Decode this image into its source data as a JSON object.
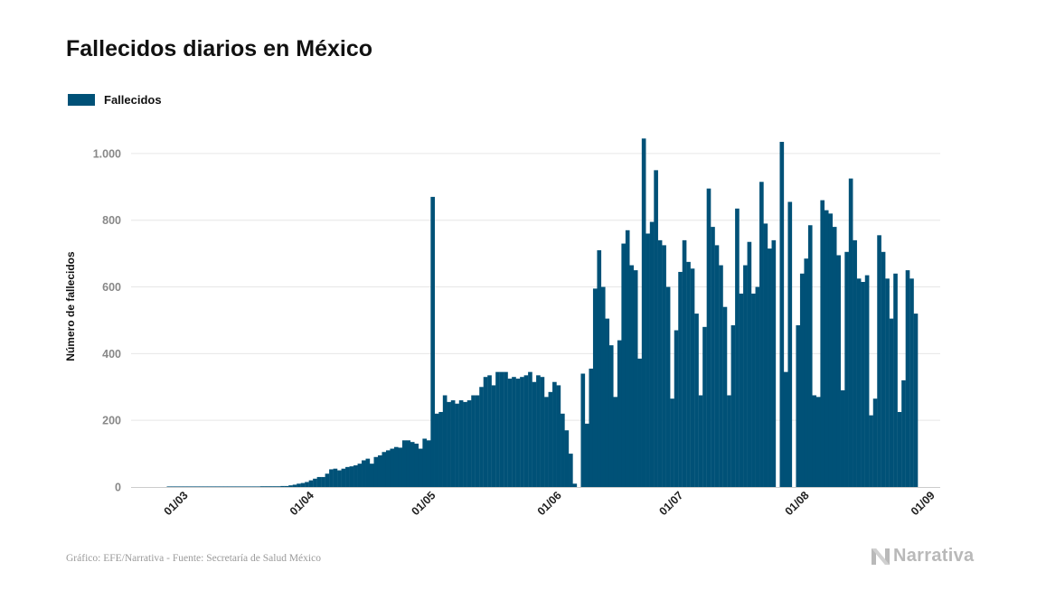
{
  "title": "Fallecidos diarios en México",
  "legend": {
    "label": "Fallecidos"
  },
  "footer": {
    "source": "Gráfico: EFE/Narrativa - Fuente: Secretaría de Salud México",
    "brand": "Narrativa"
  },
  "colors": {
    "bar": "#005177",
    "grid": "#e6e6e6",
    "tick": "#888888",
    "brand": "#b9b9b9"
  },
  "icons": {
    "brand": "narrativa-logo-icon"
  },
  "chart_data": {
    "type": "bar",
    "title": "Fallecidos diarios en México",
    "xlabel": "",
    "ylabel": "Número de fallecidos",
    "ylim": [
      0,
      1100
    ],
    "yticks": [
      0,
      200,
      400,
      600,
      800,
      1000
    ],
    "ytick_labels": [
      "0",
      "200",
      "400",
      "600",
      "800",
      "1.000"
    ],
    "xticks": [
      "01/03",
      "01/04",
      "01/05",
      "01/06",
      "01/07",
      "01/08",
      "01/09"
    ],
    "grid": true,
    "legend_position": "top-left",
    "series": [
      {
        "name": "Fallecidos",
        "start_date": "2020-03-01",
        "values": [
          0,
          0,
          0,
          0,
          0,
          0,
          0,
          0,
          0,
          0,
          0,
          0,
          0,
          0,
          0,
          0,
          0,
          0,
          0,
          0,
          0,
          0,
          0,
          1,
          1,
          1,
          2,
          2,
          3,
          3,
          5,
          7,
          10,
          12,
          15,
          20,
          25,
          30,
          30,
          40,
          53,
          55,
          50,
          55,
          60,
          62,
          65,
          70,
          80,
          85,
          70,
          90,
          95,
          105,
          110,
          115,
          120,
          118,
          140,
          140,
          135,
          130,
          115,
          145,
          140,
          870,
          220,
          225,
          275,
          255,
          260,
          250,
          260,
          255,
          260,
          275,
          275,
          300,
          330,
          335,
          305,
          345,
          345,
          345,
          325,
          330,
          325,
          330,
          335,
          345,
          315,
          335,
          330,
          270,
          285,
          315,
          305,
          220,
          170,
          100,
          10,
          null,
          340,
          190,
          355,
          595,
          710,
          600,
          505,
          425,
          270,
          440,
          730,
          770,
          665,
          650,
          385,
          1045,
          760,
          795,
          950,
          740,
          725,
          600,
          265,
          470,
          645,
          740,
          675,
          655,
          520,
          275,
          480,
          895,
          780,
          725,
          665,
          540,
          275,
          485,
          835,
          580,
          665,
          735,
          580,
          600,
          915,
          790,
          715,
          740,
          null,
          1035,
          345,
          855,
          null,
          485,
          640,
          685,
          785,
          275,
          270,
          860,
          830,
          820,
          780,
          695,
          290,
          705,
          925,
          740,
          625,
          615,
          635,
          215,
          265,
          755,
          705,
          625,
          505,
          640,
          225,
          320,
          650,
          625,
          520
        ]
      }
    ]
  }
}
